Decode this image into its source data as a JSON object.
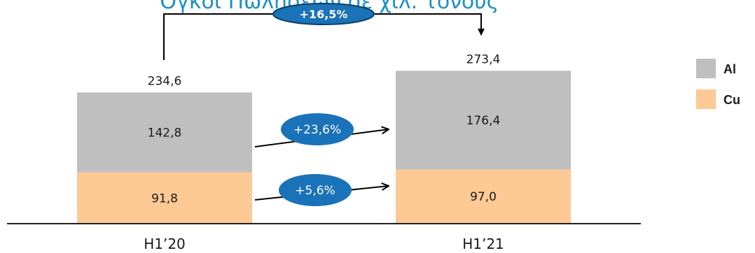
{
  "title": "Όγκοι Πωλήσεων σε χιλ. τόνους",
  "total_growth_label": "+16,5%",
  "colors": {
    "al": "#bfbfbf",
    "cu": "#fdc994",
    "bubble": "#1a72b8",
    "title": "#1f8fc4"
  },
  "chart_data": {
    "type": "bar",
    "stacked": true,
    "categories": [
      "H1’20",
      "H1’21"
    ],
    "series": [
      {
        "name": "Cu",
        "values": [
          91.8,
          97.0
        ],
        "labels": [
          "91,8",
          "97,0"
        ]
      },
      {
        "name": "Al",
        "values": [
          142.8,
          176.4
        ],
        "labels": [
          "142,8",
          "176,4"
        ]
      }
    ],
    "totals": [
      234.6,
      273.4
    ],
    "total_labels": [
      "234,6",
      "273,4"
    ],
    "growth": [
      {
        "series": "Al",
        "label": "+23,6%"
      },
      {
        "series": "Cu",
        "label": "+5,6%"
      }
    ],
    "legend": [
      "Al",
      "Cu"
    ],
    "legend_position": "right",
    "grid": false
  }
}
